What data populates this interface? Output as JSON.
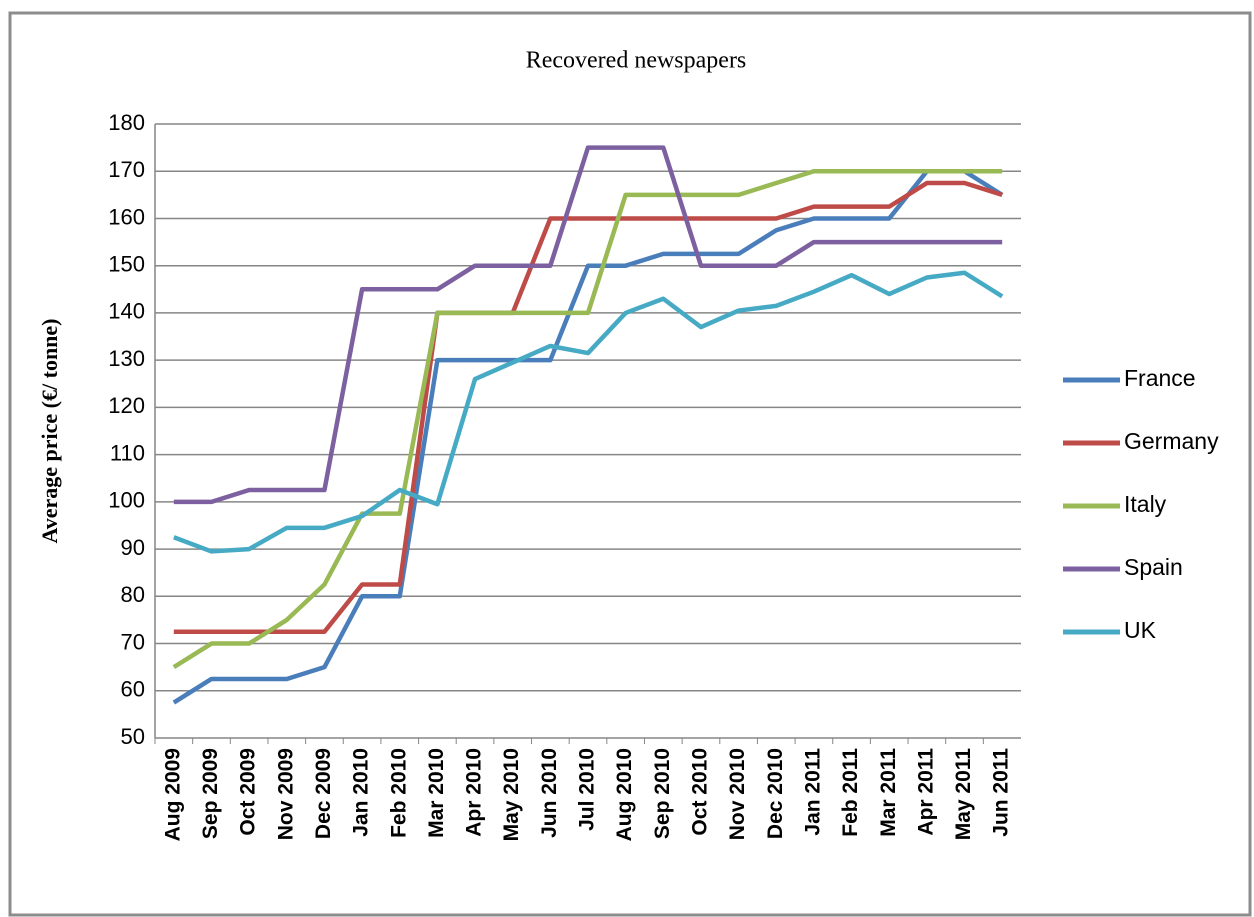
{
  "chart_data": {
    "type": "line",
    "title": "Recovered newspapers",
    "y_label": "Average price (€/ tonne)",
    "categories": [
      "Aug 2009",
      "Sep 2009",
      "Oct 2009",
      "Nov 2009",
      "Dec 2009",
      "Jan 2010",
      "Feb 2010",
      "Mar 2010",
      "Apr 2010",
      "May 2010",
      "Jun 2010",
      "Jul 2010",
      "Aug 2010",
      "Sep 2010",
      "Oct 2010",
      "Nov 2010",
      "Dec 2010",
      "Jan 2011",
      "Feb 2011",
      "Mar 2011",
      "Apr 2011",
      "May 2011",
      "Jun 2011"
    ],
    "series": [
      {
        "name": "France",
        "color": "#4a7ebb",
        "values": [
          57.5,
          62.5,
          62.5,
          62.5,
          65,
          80,
          80,
          130,
          130,
          130,
          130,
          150,
          150,
          152.5,
          152.5,
          152.5,
          157.5,
          160,
          160,
          160,
          170,
          170,
          165
        ]
      },
      {
        "name": "Germany",
        "color": "#be4b48",
        "values": [
          72.5,
          72.5,
          72.5,
          72.5,
          72.5,
          82.5,
          82.5,
          140,
          140,
          140,
          160,
          160,
          160,
          160,
          160,
          160,
          160,
          162.5,
          162.5,
          162.5,
          167.5,
          167.5,
          165
        ]
      },
      {
        "name": "Italy",
        "color": "#98b954",
        "values": [
          65,
          70,
          70,
          75,
          82.5,
          97.5,
          97.5,
          140,
          140,
          140,
          140,
          140,
          165,
          165,
          165,
          165,
          167.5,
          170,
          170,
          170,
          170,
          170,
          170
        ]
      },
      {
        "name": "Spain",
        "color": "#7d60a0",
        "values": [
          100,
          100,
          102.5,
          102.5,
          102.5,
          145,
          145,
          145,
          150,
          150,
          150,
          175,
          175,
          175,
          150,
          150,
          150,
          155,
          155,
          155,
          155,
          155,
          155
        ]
      },
      {
        "name": "UK",
        "color": "#46aac5",
        "values": [
          92.5,
          89.5,
          90,
          94.5,
          94.5,
          97,
          102.5,
          99.5,
          126,
          129.5,
          133,
          131.5,
          140,
          143,
          137,
          140.5,
          141.5,
          144.5,
          148,
          144,
          147.5,
          148.5,
          143.5
        ]
      }
    ],
    "ylim": [
      50,
      180
    ],
    "yticks": [
      50,
      60,
      70,
      80,
      90,
      100,
      110,
      120,
      130,
      140,
      150,
      160,
      170,
      180
    ],
    "grid": true,
    "legend": "right"
  }
}
